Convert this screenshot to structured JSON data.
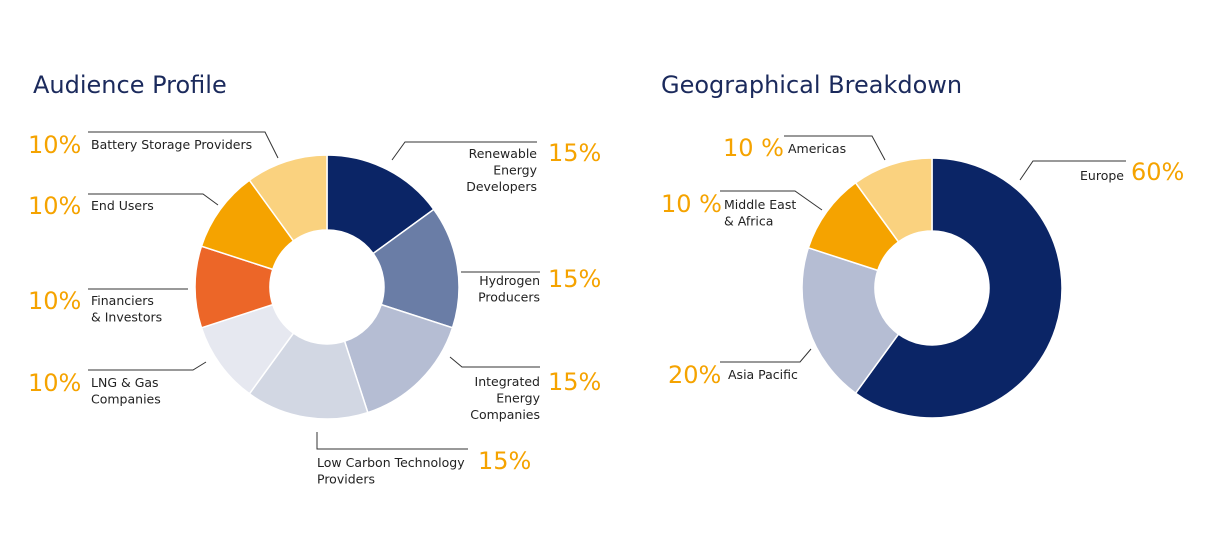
{
  "chart_data": [
    {
      "type": "donut",
      "title": "Audience Profile",
      "slices": [
        {
          "label": "Renewable Energy Developers",
          "lines": [
            "Renewable",
            "Energy",
            "Developers"
          ],
          "value": 15,
          "value_label": "15%",
          "color": "#0b2566"
        },
        {
          "label": "Hydrogen Producers",
          "lines": [
            "Hydrogen",
            "Producers"
          ],
          "value": 15,
          "value_label": "15%",
          "color": "#6a7da6"
        },
        {
          "label": "Integrated Energy Companies",
          "lines": [
            "Integrated",
            "Energy",
            "Companies"
          ],
          "value": 15,
          "value_label": "15%",
          "color": "#b5bdd3"
        },
        {
          "label": "Low Carbon Technology Providers",
          "lines": [
            "Low Carbon Technology",
            "Providers"
          ],
          "value": 15,
          "value_label": "15%",
          "color": "#d2d7e3"
        },
        {
          "label": "LNG & Gas Companies",
          "lines": [
            "LNG & Gas",
            "Companies"
          ],
          "value": 10,
          "value_label": "10%",
          "color": "#e6e8f0"
        },
        {
          "label": "Financiers & Investors",
          "lines": [
            "Financiers",
            "& Investors"
          ],
          "value": 10,
          "value_label": "10%",
          "color": "#ec6628"
        },
        {
          "label": "End Users",
          "lines": [
            "End Users"
          ],
          "value": 10,
          "value_label": "10%",
          "color": "#f5a300"
        },
        {
          "label": "Battery Storage Providers",
          "lines": [
            "Battery Storage Providers"
          ],
          "value": 10,
          "value_label": "10%",
          "color": "#fad27f"
        }
      ]
    },
    {
      "type": "donut",
      "title": "Geographical Breakdown",
      "slices": [
        {
          "label": "Europe",
          "lines": [
            "Europe"
          ],
          "value": 60,
          "value_label": "60%",
          "color": "#0b2566"
        },
        {
          "label": "Asia Pacific",
          "lines": [
            "Asia Pacific"
          ],
          "value": 20,
          "value_label": "20%",
          "color": "#b5bdd3"
        },
        {
          "label": "Middle East & Africa",
          "lines": [
            "Middle East",
            "& Africa"
          ],
          "value": 10,
          "value_label": "10 %",
          "color": "#f5a300"
        },
        {
          "label": "Americas",
          "lines": [
            "Americas"
          ],
          "value": 10,
          "value_label": "10 %",
          "color": "#fad27f"
        }
      ]
    }
  ]
}
